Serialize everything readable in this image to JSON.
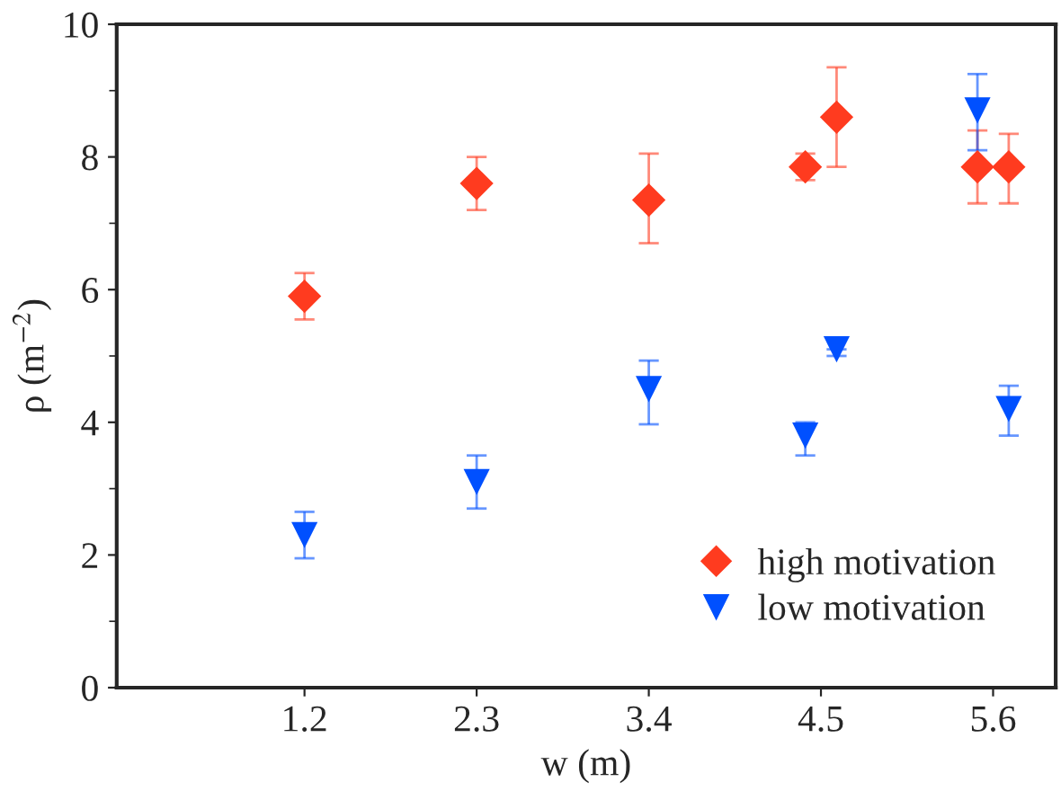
{
  "chart_data": {
    "type": "scatter",
    "xlabel": "w (m)",
    "ylabel": "ρ (m$^{−2}$)",
    "xlim": [
      0,
      6.0
    ],
    "ylim": [
      0,
      10
    ],
    "xticks": [
      1.2,
      2.3,
      3.4,
      4.5,
      5.6
    ],
    "yticks": [
      0,
      2,
      4,
      6,
      8,
      10
    ],
    "legend": "bottom right",
    "grid": false,
    "series": [
      {
        "name": "high motivation",
        "color": "#ff3b1f",
        "marker": "diamond",
        "x": [
          1.2,
          2.3,
          3.4,
          4.4,
          4.6,
          5.5,
          5.7
        ],
        "values": [
          5.9,
          7.6,
          7.35,
          7.85,
          8.6,
          7.85,
          7.85
        ],
        "errors": [
          [
            5.55,
            6.25
          ],
          [
            7.2,
            8.0
          ],
          [
            6.7,
            8.05
          ],
          [
            7.65,
            8.05
          ],
          [
            7.85,
            9.35
          ],
          [
            7.3,
            8.4
          ],
          [
            7.3,
            8.35
          ]
        ]
      },
      {
        "name": "low motivation",
        "color": "#0050ff",
        "marker": "triangle",
        "x": [
          1.2,
          2.3,
          3.4,
          4.4,
          4.6,
          5.5,
          5.7
        ],
        "values": [
          2.3,
          3.1,
          4.5,
          3.8,
          5.1,
          8.7,
          4.2
        ],
        "errors": [
          [
            1.95,
            2.65
          ],
          [
            2.7,
            3.5
          ],
          [
            3.97,
            4.93
          ],
          [
            3.5,
            4.0
          ],
          [
            5.0,
            5.1
          ],
          [
            8.1,
            9.25
          ],
          [
            3.8,
            4.55
          ]
        ]
      }
    ]
  }
}
